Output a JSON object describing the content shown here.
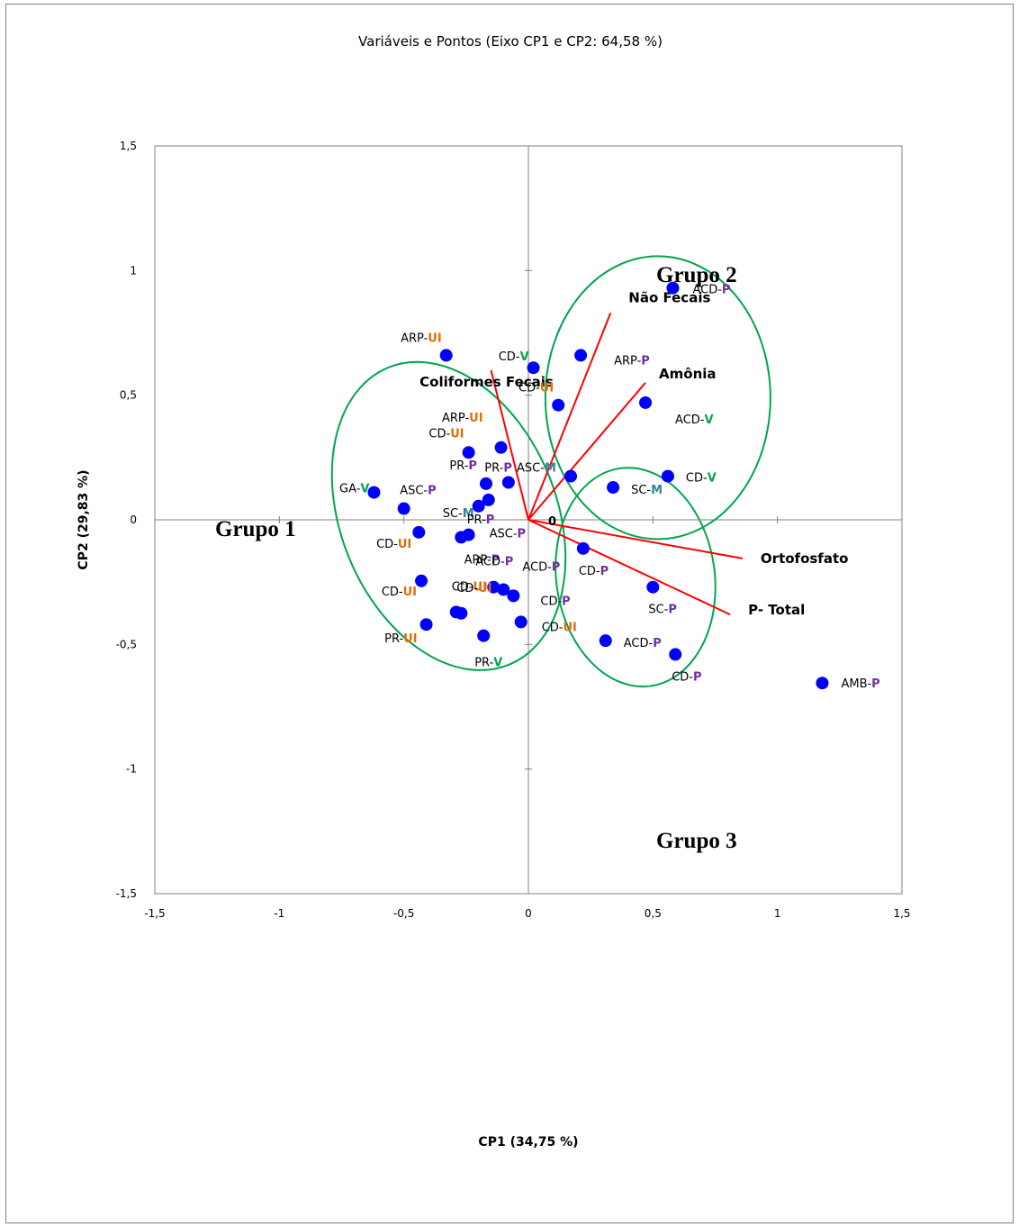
{
  "chart_data": {
    "type": "scatter",
    "title": "Variáveis e Pontos (Eixo CP1 e CP2: 64,58 %)",
    "xlabel": "CP1 (34,75 %)",
    "ylabel": "CP2 (29,83 %)",
    "xlim": [
      -1.5,
      1.5
    ],
    "ylim": [
      -1.5,
      1.5
    ],
    "x_ticks": [
      "-1,5",
      "-1",
      "-0,5",
      "0",
      "0,5",
      "1",
      "1,5"
    ],
    "y_ticks": [
      "1,5",
      "1",
      "0,5",
      "0",
      "-0,5",
      "-1",
      "-1,5"
    ],
    "grid": false,
    "colors": {
      "points": "#0000ff",
      "vectors": "#ff0000",
      "ellipses": "#00a550",
      "suffix_UI": "#e36c0a",
      "suffix_V": "#00a550",
      "suffix_P": "#7030a0",
      "suffix_M": "#31859c"
    },
    "points": [
      {
        "prefix": "ACD-",
        "suffix": "P",
        "x": 0.58,
        "y": 0.93
      },
      {
        "prefix": "ARP-",
        "suffix": "UI",
        "x": -0.33,
        "y": 0.66
      },
      {
        "prefix": "CD-",
        "suffix": "V",
        "x": 0.02,
        "y": 0.61
      },
      {
        "prefix": "ARP-",
        "suffix": "P",
        "x": 0.21,
        "y": 0.66
      },
      {
        "prefix": "CD-",
        "suffix": "UI",
        "x": 0.12,
        "y": 0.46
      },
      {
        "prefix": "ACD-",
        "suffix": "V",
        "x": 0.47,
        "y": 0.47
      },
      {
        "prefix": "ARP-",
        "suffix": "UI",
        "x": -0.11,
        "y": 0.29
      },
      {
        "prefix": "CD-",
        "suffix": "UI",
        "x": -0.24,
        "y": 0.27
      },
      {
        "prefix": "PR-",
        "suffix": "P",
        "x": -0.08,
        "y": 0.15
      },
      {
        "prefix": "PR-",
        "suffix": "P",
        "x": -0.17,
        "y": 0.145
      },
      {
        "prefix": "GA-",
        "suffix": "V",
        "x": -0.62,
        "y": 0.11
      },
      {
        "prefix": "ASC-",
        "suffix": "P",
        "x": -0.5,
        "y": 0.045
      },
      {
        "prefix": "SC-",
        "suffix": "M",
        "x": -0.2,
        "y": 0.055
      },
      {
        "prefix": "PR-",
        "suffix": "P",
        "x": -0.16,
        "y": 0.08
      },
      {
        "prefix": "ASC-",
        "suffix": "M",
        "x": 0.17,
        "y": 0.175
      },
      {
        "prefix": "SC-",
        "suffix": "M",
        "x": 0.34,
        "y": 0.13
      },
      {
        "prefix": "CD-",
        "suffix": "V",
        "x": 0.56,
        "y": 0.175
      },
      {
        "prefix": "CD-",
        "suffix": "UI",
        "x": -0.44,
        "y": -0.05
      },
      {
        "prefix": "ASC-",
        "suffix": "P",
        "x": -0.24,
        "y": -0.06
      },
      {
        "prefix": "ARP-",
        "suffix": "P",
        "x": -0.27,
        "y": -0.07
      },
      {
        "prefix": "CD-",
        "suffix": "P",
        "x": 0.22,
        "y": -0.115
      },
      {
        "prefix": "CD-",
        "suffix": "UI",
        "x": -0.43,
        "y": -0.245
      },
      {
        "prefix": "ACD-",
        "suffix": "P",
        "x": -0.14,
        "y": -0.27
      },
      {
        "prefix": "ACD-",
        "suffix": "P",
        "x": -0.1,
        "y": -0.28
      },
      {
        "prefix": "CD-",
        "suffix": "P",
        "x": -0.06,
        "y": -0.305
      },
      {
        "prefix": "SC-",
        "suffix": "P",
        "x": 0.5,
        "y": -0.27
      },
      {
        "prefix": "CD-",
        "suffix": "UI",
        "x": -0.29,
        "y": -0.37
      },
      {
        "prefix": "CD-",
        "suffix": "UI",
        "x": -0.27,
        "y": -0.375
      },
      {
        "prefix": "CD-",
        "suffix": "UI",
        "x": -0.03,
        "y": -0.41
      },
      {
        "prefix": "PR-",
        "suffix": "UI",
        "x": -0.41,
        "y": -0.42
      },
      {
        "prefix": "PR-",
        "suffix": "V",
        "x": -0.18,
        "y": -0.465
      },
      {
        "prefix": "ACD-",
        "suffix": "P",
        "x": 0.31,
        "y": -0.485
      },
      {
        "prefix": "CD-",
        "suffix": "P",
        "x": 0.59,
        "y": -0.54
      },
      {
        "prefix": "AMB-",
        "suffix": "P",
        "x": 1.18,
        "y": -0.655
      }
    ],
    "variables": [
      {
        "name": "Não Fecais",
        "x": 0.33,
        "y": 0.83
      },
      {
        "name": "Amônia",
        "x": 0.47,
        "y": 0.55
      },
      {
        "name": "Coliformes Fecais",
        "x": -0.15,
        "y": 0.6
      },
      {
        "name": "Ortofosfato",
        "x": 0.86,
        "y": -0.155
      },
      {
        "name": "P- Total",
        "x": 0.81,
        "y": -0.38
      }
    ],
    "origin_label": "0",
    "groups": [
      {
        "name": "Grupo 1"
      },
      {
        "name": "Grupo 2"
      },
      {
        "name": "Grupo 3"
      }
    ]
  }
}
